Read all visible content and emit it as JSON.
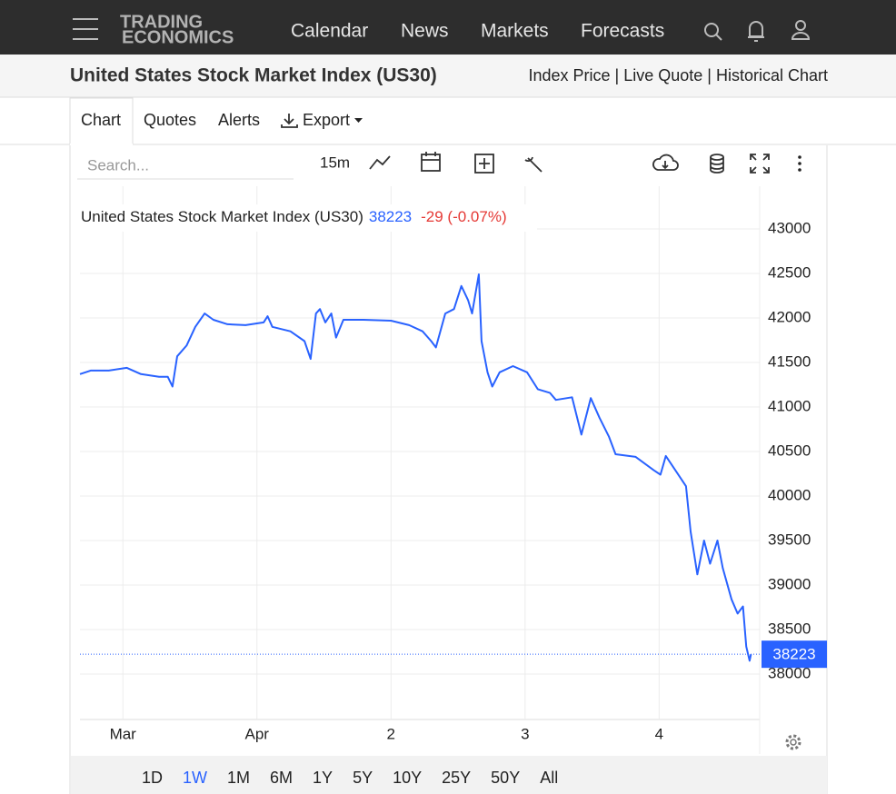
{
  "nav": {
    "logo_top": "TRADING",
    "logo_bottom": "ECONOMICS",
    "items": [
      "Calendar",
      "News",
      "Markets",
      "Forecasts"
    ]
  },
  "header": {
    "title": "United States Stock Market Index (US30)",
    "links": "Index Price | Live Quote | Historical Chart"
  },
  "tabs": [
    "Chart",
    "Quotes",
    "Alerts",
    "Export"
  ],
  "toolbar": {
    "search_placeholder": "Search...",
    "interval": "15m"
  },
  "chart_data": {
    "type": "line",
    "change": "-29 (-0.07%)",
    "last_price": 38223,
    "x": [
      -0.4,
      1.2,
      3.9,
      6.6,
      8.7,
      11.4,
      12.7,
      13.4,
      14.1,
      15.5,
      16.8,
      18.2,
      19.5,
      21.6,
      24.3,
      27.0,
      27.6,
      28.3,
      31.0,
      33.1,
      34.0,
      34.8,
      35.4,
      36.2,
      37.1,
      37.8,
      38.9,
      41.9,
      46.0,
      48.7,
      50.7,
      52.0,
      52.7,
      54.1,
      55.4,
      56.5,
      57.5,
      58.1,
      59.1,
      59.5,
      60.4,
      61.1,
      62.2,
      64.2,
      66.3,
      67.9,
      69.7,
      70.6,
      73.0,
      74.4,
      75.8,
      77.1,
      78.5,
      79.5,
      82.5,
      85.2,
      86.2,
      87.0,
      88.6,
      90.0,
      90.7,
      91.7,
      92.7,
      93.6,
      94.7,
      95.5,
      96.8,
      97.7,
      98.5,
      99.0,
      99.5,
      99.7
    ],
    "series": [
      {
        "name": "United States Stock Market Index (US30)",
        "color": "#2962ff",
        "values": [
          41370,
          41410,
          41410,
          41440,
          41370,
          41340,
          41340,
          41230,
          41570,
          41690,
          41900,
          42050,
          41980,
          41930,
          41920,
          41950,
          42020,
          41900,
          41850,
          41740,
          41540,
          42050,
          42100,
          41950,
          42050,
          41780,
          41980,
          41980,
          41970,
          41920,
          41850,
          41740,
          41670,
          42050,
          42100,
          42360,
          42200,
          42050,
          42490,
          41740,
          41390,
          41230,
          41390,
          41460,
          41390,
          41200,
          41160,
          41080,
          41110,
          40690,
          41100,
          40880,
          40670,
          40470,
          40440,
          40290,
          40240,
          40450,
          40270,
          40110,
          39600,
          39120,
          39500,
          39240,
          39500,
          39190,
          38840,
          38680,
          38760,
          38310,
          38150,
          38223
        ]
      }
    ],
    "xlim": [
      -0.4,
      101
    ],
    "xticks": [
      {
        "value": 6,
        "label": "Mar"
      },
      {
        "value": 26,
        "label": "Apr"
      },
      {
        "value": 46,
        "label": "2"
      },
      {
        "value": 66,
        "label": "3"
      },
      {
        "value": 86,
        "label": "4"
      }
    ],
    "ylim": [
      37490,
      43480
    ],
    "yticks": [
      38000,
      38500,
      39000,
      39500,
      40000,
      40500,
      41000,
      41500,
      42000,
      42500,
      43000
    ],
    "grid": true
  },
  "ranges": [
    "1D",
    "1W",
    "1M",
    "6M",
    "1Y",
    "5Y",
    "10Y",
    "25Y",
    "50Y",
    "All"
  ],
  "active_range": 1
}
